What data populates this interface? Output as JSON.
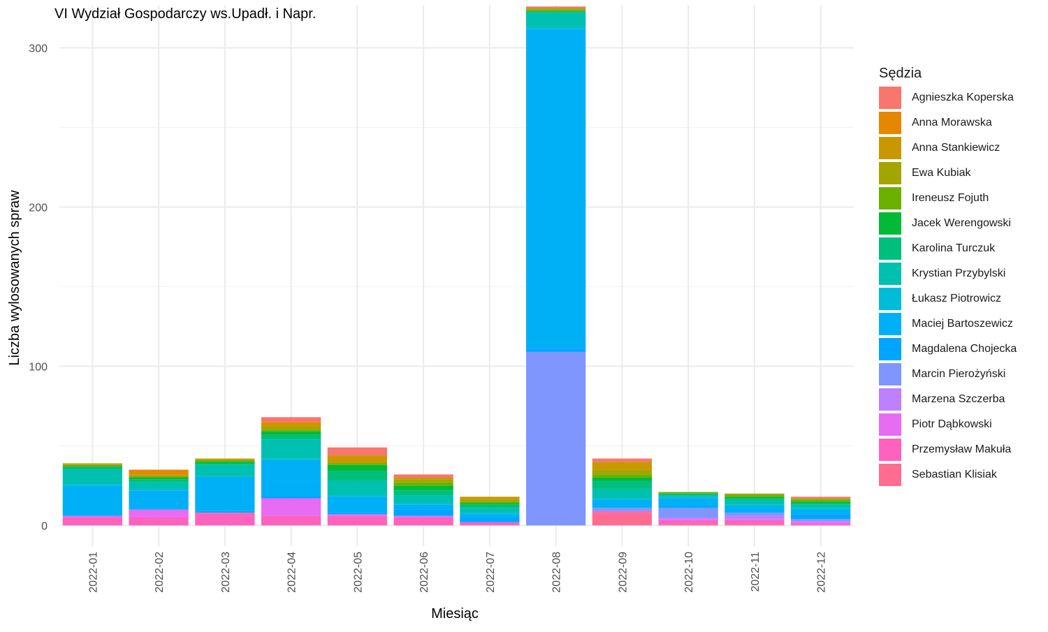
{
  "chart_data": {
    "type": "bar",
    "stacked": true,
    "title": "VI Wydział Gospodarczy ws.Upadł. i Napr.",
    "xlabel": "Miesiąc",
    "ylabel": "Liczba wylosowanych spraw",
    "legend_title": "Sędzia",
    "legend_position": "right",
    "grid": true,
    "ylim": [
      -13,
      327
    ],
    "yticks": [
      0,
      100,
      200,
      300
    ],
    "categories": [
      "2022-01",
      "2022-02",
      "2022-03",
      "2022-04",
      "2022-05",
      "2022-06",
      "2022-07",
      "2022-08",
      "2022-09",
      "2022-10",
      "2022-11",
      "2022-12"
    ],
    "series": [
      {
        "name": "Agnieszka Koperska",
        "color": "#F8766D",
        "values": [
          0,
          0,
          0,
          3,
          5,
          2,
          0,
          1,
          2,
          0,
          0,
          1
        ]
      },
      {
        "name": "Anna Morawska",
        "color": "#E58700",
        "values": [
          0,
          3,
          0,
          1,
          0,
          0,
          0,
          0,
          0,
          0,
          0,
          0
        ]
      },
      {
        "name": "Anna Stankiewicz",
        "color": "#C99800",
        "values": [
          1,
          1,
          1,
          2,
          5,
          1,
          2,
          0,
          5,
          0,
          0,
          0
        ]
      },
      {
        "name": "Ewa Kubiak",
        "color": "#A3A500",
        "values": [
          0,
          0,
          0,
          2,
          0,
          2,
          1,
          1,
          3,
          0,
          1,
          1
        ]
      },
      {
        "name": "Ireneusz Fojuth",
        "color": "#6BB100",
        "values": [
          1,
          1,
          1,
          1,
          1,
          2,
          1,
          1,
          2,
          1,
          1,
          1
        ]
      },
      {
        "name": "Jacek Werengowski",
        "color": "#00BA38",
        "values": [
          0,
          1,
          1,
          2,
          4,
          3,
          1,
          0,
          2,
          0,
          1,
          1
        ]
      },
      {
        "name": "Karolina Turczuk",
        "color": "#00BF7D",
        "values": [
          2,
          2,
          1,
          3,
          6,
          3,
          2,
          1,
          5,
          1,
          1,
          1
        ]
      },
      {
        "name": "Krystian Przybylski",
        "color": "#00C0AF",
        "values": [
          9,
          4,
          7,
          12,
          9,
          5,
          3,
          9,
          6,
          1,
          3,
          2
        ]
      },
      {
        "name": "Łukasz Piotrowicz",
        "color": "#00BCD8",
        "values": [
          1,
          1,
          1,
          1,
          1,
          1,
          1,
          1,
          1,
          1,
          1,
          1
        ]
      },
      {
        "name": "Maciej Bartoszewicz",
        "color": "#00B0F6",
        "values": [
          19,
          12,
          21,
          22,
          10,
          3,
          2,
          201,
          5,
          5,
          4,
          3
        ]
      },
      {
        "name": "Magdalena Chojecka",
        "color": "#00A5FF",
        "values": [
          0,
          0,
          1,
          2,
          1,
          4,
          3,
          2,
          0,
          1,
          0,
          3
        ]
      },
      {
        "name": "Marcin Pierożyński",
        "color": "#7F96FF",
        "values": [
          0,
          0,
          0,
          0,
          0,
          0,
          0,
          109,
          2,
          6,
          2,
          1
        ]
      },
      {
        "name": "Marzena Szczerba",
        "color": "#BF80FF",
        "values": [
          0,
          0,
          0,
          0,
          0,
          0,
          0,
          0,
          0,
          1,
          2,
          1
        ]
      },
      {
        "name": "Piotr Dąbkowski",
        "color": "#E76BF3",
        "values": [
          1,
          5,
          0,
          11,
          1,
          1,
          0,
          0,
          0,
          1,
          1,
          1
        ]
      },
      {
        "name": "Przemysław Makuła",
        "color": "#FF62BC",
        "values": [
          5,
          5,
          8,
          6,
          6,
          5,
          2,
          0,
          1,
          2,
          2,
          1
        ]
      },
      {
        "name": "Sebastian Klisiak",
        "color": "#FF6C91",
        "values": [
          0,
          0,
          0,
          0,
          0,
          0,
          0,
          0,
          8,
          1,
          1,
          0
        ]
      }
    ]
  }
}
